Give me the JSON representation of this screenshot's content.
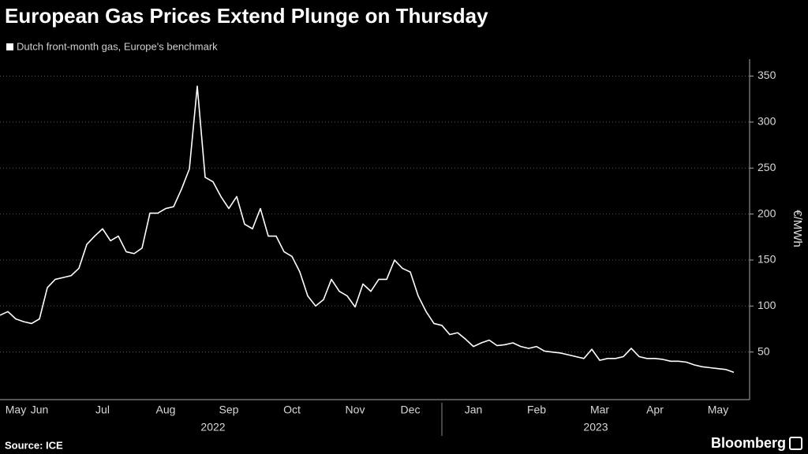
{
  "chart_data": {
    "type": "line",
    "title": "European Gas Prices Extend Plunge on Thursday",
    "ylabel": "€/MWh",
    "source": "Source: ICE",
    "brand": "Bloomberg",
    "categories": [
      null,
      null,
      "May",
      null,
      null,
      "Jun",
      null,
      null,
      null,
      null,
      null,
      null,
      null,
      "Jul",
      null,
      null,
      null,
      null,
      null,
      null,
      null,
      "Aug",
      null,
      null,
      null,
      null,
      null,
      null,
      null,
      "Sep",
      null,
      null,
      null,
      null,
      null,
      null,
      null,
      "Oct",
      null,
      null,
      null,
      null,
      null,
      null,
      null,
      "Nov",
      null,
      null,
      null,
      null,
      null,
      null,
      "Dec",
      null,
      null,
      null,
      null,
      null,
      null,
      null,
      "Jan",
      null,
      null,
      null,
      null,
      null,
      null,
      null,
      "Feb",
      null,
      null,
      null,
      null,
      null,
      null,
      null,
      "Mar",
      null,
      null,
      null,
      null,
      null,
      null,
      "Apr",
      null,
      null,
      null,
      null,
      null,
      null,
      null,
      "May",
      null,
      null
    ],
    "x_groups": [
      {
        "label": "2022",
        "categories": [
          "May",
          "Jun",
          "Jul",
          "Aug",
          "Sep",
          "Oct",
          "Nov",
          "Dec"
        ]
      },
      {
        "label": "2023",
        "categories": [
          "Jan",
          "Feb",
          "Mar",
          "Apr",
          "May"
        ]
      }
    ],
    "series": [
      {
        "name": "Dutch front-month gas, Europe's benchmark",
        "color": "#ffffff",
        "values": [
          90,
          94,
          86,
          83,
          81,
          86,
          120,
          129,
          131,
          133,
          141,
          167,
          176,
          184,
          171,
          176,
          159,
          157,
          163,
          201,
          201,
          206,
          208,
          227,
          249,
          339,
          240,
          235,
          219,
          206,
          219,
          189,
          184,
          206,
          176,
          176,
          159,
          154,
          137,
          111,
          100,
          107,
          129,
          116,
          111,
          99,
          124,
          116,
          129,
          129,
          150,
          141,
          137,
          111,
          94,
          81,
          79,
          69,
          71,
          64,
          56,
          60,
          63,
          57,
          58,
          60,
          56,
          54,
          56,
          51,
          50,
          49,
          47,
          45,
          43,
          53,
          41,
          43,
          43,
          45,
          54,
          45,
          43,
          43,
          42,
          40,
          40,
          39,
          36,
          34,
          33,
          32,
          31,
          28
        ]
      }
    ],
    "ylim": [
      0,
      365
    ],
    "yticks": [
      50,
      100,
      150,
      200,
      250,
      300,
      350
    ],
    "grid": true,
    "y_axis_side": "right"
  }
}
